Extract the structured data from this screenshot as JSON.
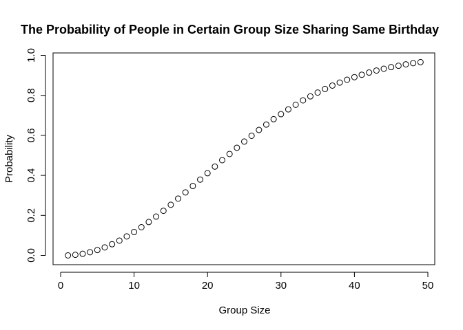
{
  "chart_data": {
    "type": "scatter",
    "title": "The Probability of People in Certain Group Size Sharing Same Birthday",
    "xlabel": "Group Size",
    "ylabel": "Probability",
    "xlim": [
      1,
      49
    ],
    "ylim": [
      0,
      1
    ],
    "x_ticks": [
      0,
      10,
      20,
      30,
      40,
      50
    ],
    "y_ticks": [
      0.0,
      0.2,
      0.4,
      0.6,
      0.8,
      1.0
    ],
    "x_tick_labels": [
      "0",
      "10",
      "20",
      "30",
      "40",
      "50"
    ],
    "y_tick_labels": [
      "0.0",
      "0.2",
      "0.4",
      "0.6",
      "0.8",
      "1.0"
    ],
    "marker": "open-circle",
    "grid": false,
    "x": [
      1,
      2,
      3,
      4,
      5,
      6,
      7,
      8,
      9,
      10,
      11,
      12,
      13,
      14,
      15,
      16,
      17,
      18,
      19,
      20,
      21,
      22,
      23,
      24,
      25,
      26,
      27,
      28,
      29,
      30,
      31,
      32,
      33,
      34,
      35,
      36,
      37,
      38,
      39,
      40,
      41,
      42,
      43,
      44,
      45,
      46,
      47,
      48,
      49
    ],
    "y": [
      0.0,
      0.003,
      0.008,
      0.016,
      0.027,
      0.04,
      0.056,
      0.074,
      0.095,
      0.117,
      0.141,
      0.167,
      0.194,
      0.223,
      0.253,
      0.284,
      0.315,
      0.347,
      0.379,
      0.411,
      0.444,
      0.476,
      0.507,
      0.538,
      0.569,
      0.598,
      0.627,
      0.654,
      0.681,
      0.706,
      0.73,
      0.753,
      0.775,
      0.795,
      0.814,
      0.832,
      0.849,
      0.864,
      0.878,
      0.891,
      0.903,
      0.914,
      0.924,
      0.933,
      0.941,
      0.948,
      0.955,
      0.961,
      0.966
    ]
  }
}
